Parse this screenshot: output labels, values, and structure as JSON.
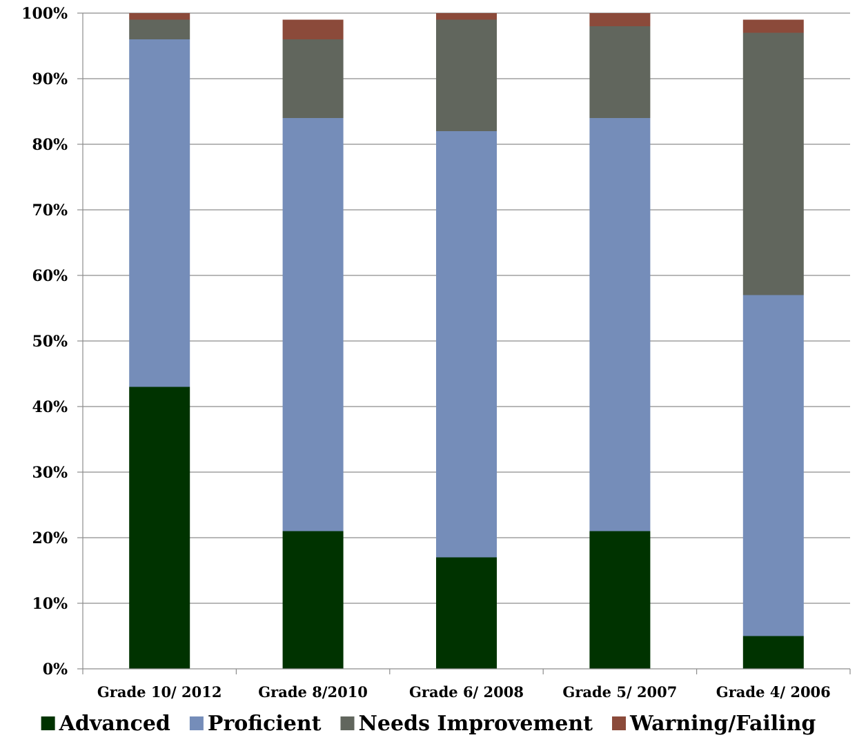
{
  "chart_data": {
    "type": "bar",
    "stacked": true,
    "categories": [
      "Grade 10/ 2012",
      "Grade 8/2010",
      "Grade 6/ 2008",
      "Grade 5/ 2007",
      "Grade 4/ 2006"
    ],
    "series": [
      {
        "name": "Advanced",
        "color": "#003300",
        "values": [
          43,
          21,
          17,
          21,
          5
        ]
      },
      {
        "name": "Proficient",
        "color": "#758db9",
        "values": [
          53,
          63,
          65,
          63,
          52
        ]
      },
      {
        "name": "Needs Improvement",
        "color": "#61665d",
        "values": [
          3,
          12,
          17,
          14,
          40
        ]
      },
      {
        "name": "Warning/Failing",
        "color": "#8b4a3a",
        "values": [
          1,
          3,
          1,
          2,
          2
        ]
      }
    ],
    "yticks": [
      "0%",
      "10%",
      "20%",
      "30%",
      "40%",
      "50%",
      "60%",
      "70%",
      "80%",
      "90%",
      "100%"
    ],
    "ylim": [
      0,
      100
    ],
    "grid": true,
    "legend_position": "bottom",
    "title": "",
    "xlabel": "",
    "ylabel": ""
  }
}
